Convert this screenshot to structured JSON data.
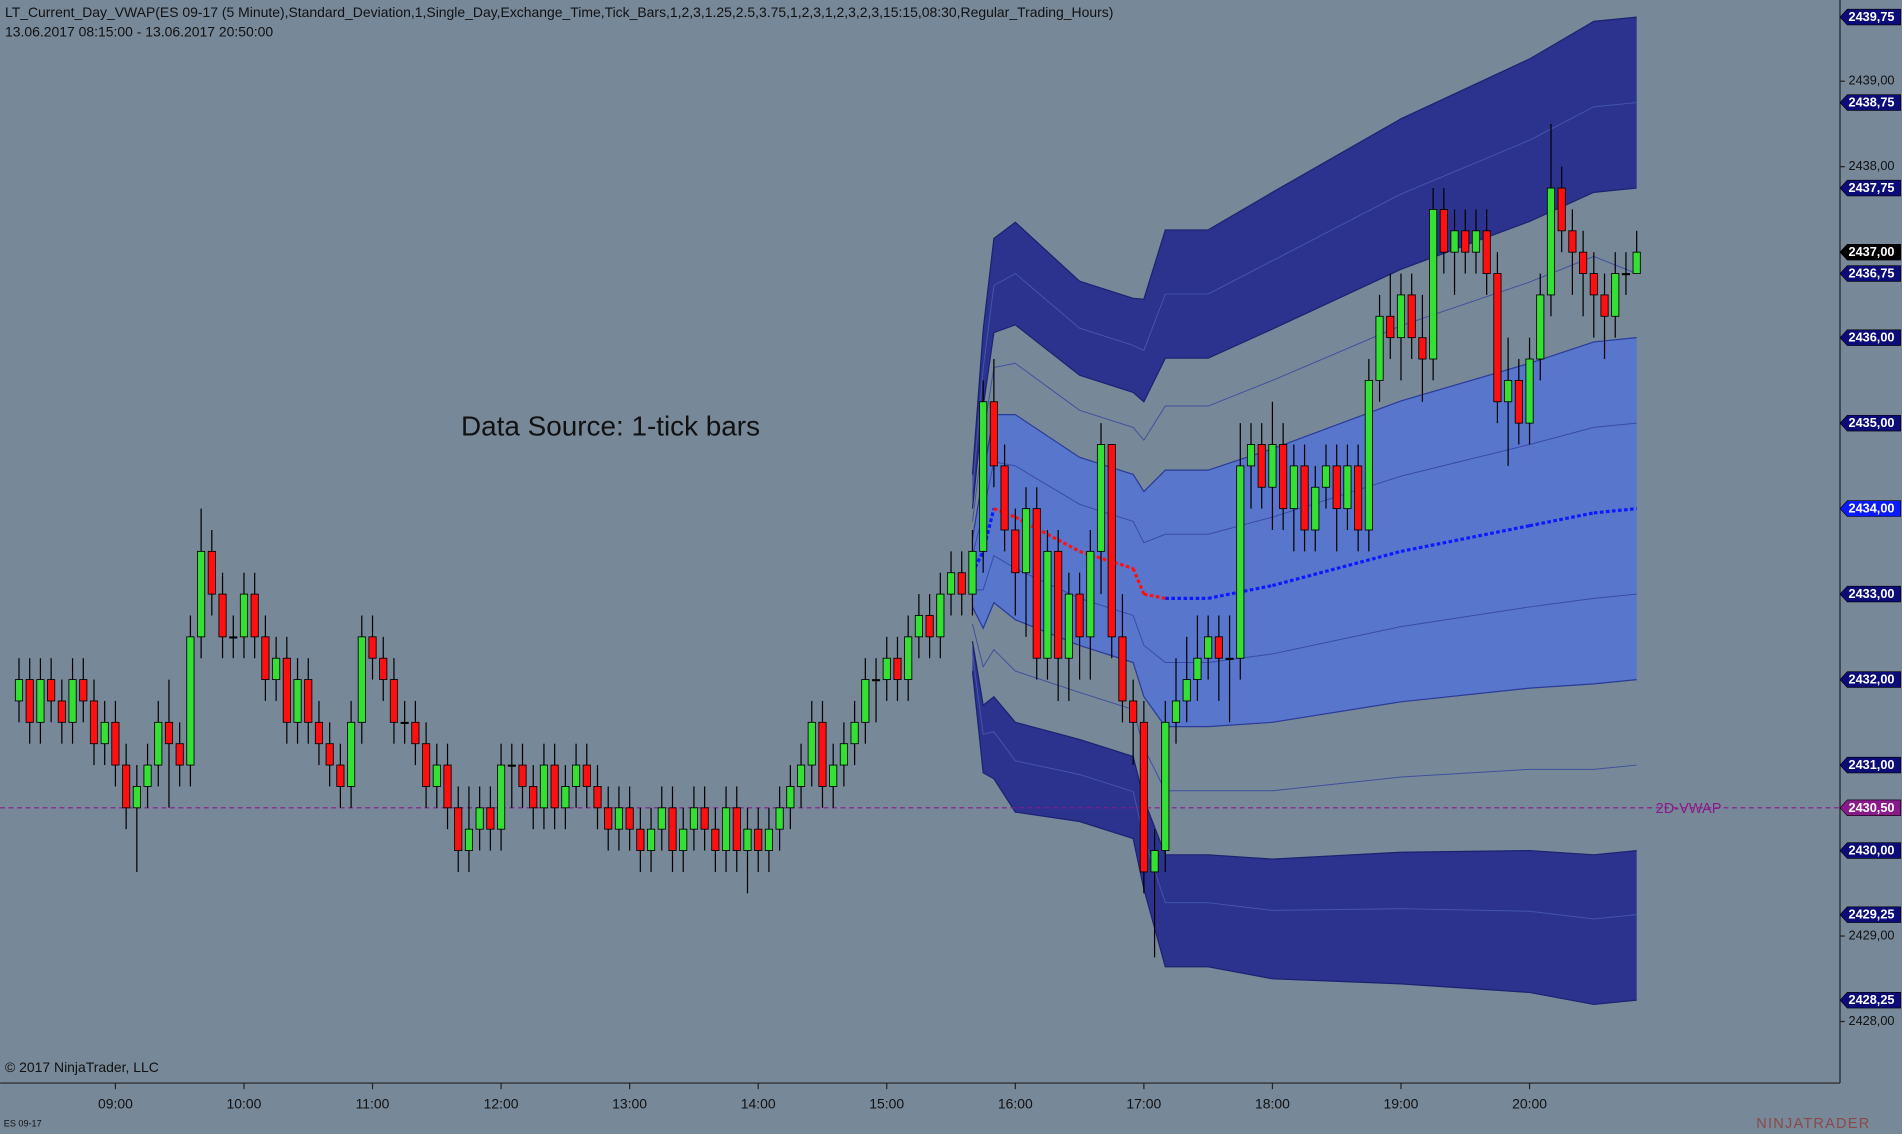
{
  "chart_data": {
    "type": "candlestick",
    "title": "LT_Current_Day_VWAP(ES 09-17 (5 Minute),Standard_Deviation,1,Single_Day,Exchange_Time,Tick_Bars,1,2,3,1.25,2.5,3.75,1,2,3,1,2,3,2,3,15:15,08:30,Regular_Trading_Hours)",
    "subtitle": "13.06.2017 08:15:00 - 13.06.2017 20:50:00",
    "annotation": "Data Source: 1-tick bars",
    "copyright": "© 2017 NinjaTrader, LLC",
    "instrument": "ES 09-17",
    "logo": "NINJATRADER",
    "background": "#778899",
    "up_color": "#33e033",
    "down_color": "#ff1010",
    "xlim": [
      486.2,
      1344.9
    ],
    "xticks": [
      {
        "value": 540,
        "label": "09:00"
      },
      {
        "value": 600,
        "label": "10:00"
      },
      {
        "value": 660,
        "label": "11:00"
      },
      {
        "value": 720,
        "label": "12:00"
      },
      {
        "value": 780,
        "label": "13:00"
      },
      {
        "value": 840,
        "label": "14:00"
      },
      {
        "value": 900,
        "label": "15:00"
      },
      {
        "value": 960,
        "label": "16:00"
      },
      {
        "value": 1020,
        "label": "17:00"
      },
      {
        "value": 1080,
        "label": "18:00"
      },
      {
        "value": 1140,
        "label": "19:00"
      },
      {
        "value": 1200,
        "label": "20:00"
      }
    ],
    "ylim": [
      2427.28,
      2439.95
    ],
    "yticks": [
      {
        "value": 2428,
        "label": "2428,00"
      },
      {
        "value": 2429,
        "label": "2429,00"
      },
      {
        "value": 2430,
        "label": "2430,00"
      },
      {
        "value": 2431,
        "label": "2431,00"
      },
      {
        "value": 2432,
        "label": "2432,00"
      },
      {
        "value": 2433,
        "label": "2433,00"
      },
      {
        "value": 2434,
        "label": "2434,00"
      },
      {
        "value": 2435,
        "label": "2435,00"
      },
      {
        "value": 2436,
        "label": "2436,00"
      },
      {
        "value": 2437,
        "label": "2437,00"
      },
      {
        "value": 2438,
        "label": "2438,00"
      },
      {
        "value": 2439,
        "label": "2439,00"
      }
    ],
    "x": [
      495,
      500,
      505,
      510,
      515,
      520,
      525,
      530,
      535,
      540,
      545,
      550,
      555,
      560,
      565,
      570,
      575,
      580,
      585,
      590,
      595,
      600,
      605,
      610,
      615,
      620,
      625,
      630,
      635,
      640,
      645,
      650,
      655,
      660,
      665,
      670,
      675,
      680,
      685,
      690,
      695,
      700,
      705,
      710,
      715,
      720,
      725,
      730,
      735,
      740,
      745,
      750,
      755,
      760,
      765,
      770,
      775,
      780,
      785,
      790,
      795,
      800,
      805,
      810,
      815,
      820,
      825,
      830,
      835,
      840,
      845,
      850,
      855,
      860,
      865,
      870,
      875,
      880,
      885,
      890,
      895,
      900,
      905,
      910,
      915,
      920,
      925,
      930,
      935,
      940,
      945,
      950,
      955,
      960,
      965,
      970,
      975,
      980,
      985,
      990,
      995,
      1000,
      1005,
      1010,
      1015,
      1020,
      1025,
      1030,
      1035,
      1040,
      1045,
      1050,
      1055,
      1060,
      1065,
      1070,
      1075,
      1080,
      1085,
      1090,
      1095,
      1100,
      1105,
      1110,
      1115,
      1120,
      1125,
      1130,
      1135,
      1140,
      1145,
      1150,
      1155,
      1160,
      1165,
      1170,
      1175,
      1180,
      1185,
      1190,
      1195,
      1200,
      1205,
      1210,
      1215,
      1220,
      1225,
      1230,
      1235,
      1240,
      1245,
      1250
    ],
    "open": [
      2431.75,
      2432,
      2431.5,
      2432,
      2431.75,
      2431.5,
      2432,
      2431.75,
      2431.25,
      2431.5,
      2431,
      2430.5,
      2430.75,
      2431,
      2431.5,
      2431.25,
      2431,
      2432.5,
      2433.5,
      2433,
      2432.5,
      2432.5,
      2433,
      2432.5,
      2432,
      2432.25,
      2431.5,
      2432,
      2431.5,
      2431.25,
      2431,
      2430.75,
      2431.5,
      2432.5,
      2432.25,
      2432,
      2431.5,
      2431.5,
      2431.25,
      2430.75,
      2431,
      2430.5,
      2430,
      2430.25,
      2430.5,
      2430.25,
      2431,
      2431,
      2430.75,
      2430.5,
      2431,
      2430.5,
      2430.75,
      2431,
      2430.75,
      2430.5,
      2430.25,
      2430.5,
      2430.25,
      2430,
      2430.25,
      2430.5,
      2430,
      2430.25,
      2430.5,
      2430.25,
      2430,
      2430.5,
      2430,
      2430.25,
      2430,
      2430.25,
      2430.5,
      2430.75,
      2431,
      2431.5,
      2430.75,
      2431,
      2431.25,
      2431.5,
      2432,
      2432,
      2432.25,
      2432,
      2432.5,
      2432.75,
      2432.5,
      2433,
      2433.25,
      2433,
      2433.5,
      2435.25,
      2434.5,
      2433.75,
      2433.25,
      2434,
      2432.25,
      2433.5,
      2432.25,
      2433,
      2432.5,
      2433.5,
      2434.75,
      2432.5,
      2431.75,
      2431.5,
      2429.75,
      2430,
      2431.5,
      2431.75,
      2432,
      2432.25,
      2432.5,
      2432.25,
      2432.25,
      2434.5,
      2434.75,
      2434.25,
      2434.75,
      2434,
      2434.5,
      2433.75,
      2434.25,
      2434.5,
      2434,
      2434.5,
      2433.75,
      2435.5,
      2436.25,
      2436,
      2436.5,
      2436,
      2435.75,
      2437.5,
      2437,
      2437.25,
      2437,
      2437.25,
      2436.75,
      2435.25,
      2435.5,
      2435,
      2435.75,
      2436.5,
      2437.75,
      2437.25,
      2437,
      2436.75,
      2436.5,
      2436.25,
      2436.75,
      2436.75
    ],
    "high": [
      2432.25,
      2432.25,
      2432.25,
      2432.25,
      2432,
      2432.25,
      2432.25,
      2432,
      2431.75,
      2431.75,
      2431.25,
      2431,
      2431.25,
      2431.75,
      2432,
      2431.5,
      2432.75,
      2434,
      2433.75,
      2433.25,
      2432.75,
      2433.25,
      2433.25,
      2432.75,
      2432.5,
      2432.5,
      2432.25,
      2432.25,
      2431.75,
      2431.5,
      2431.25,
      2431.75,
      2432.75,
      2432.75,
      2432.5,
      2432.25,
      2431.75,
      2431.75,
      2431.5,
      2431.25,
      2431.25,
      2430.75,
      2430.75,
      2430.75,
      2430.75,
      2431.25,
      2431.25,
      2431.25,
      2431,
      2431.25,
      2431.25,
      2431,
      2431.25,
      2431.25,
      2431,
      2430.75,
      2430.75,
      2430.75,
      2430.5,
      2430.5,
      2430.75,
      2430.75,
      2430.5,
      2430.75,
      2430.75,
      2430.5,
      2430.75,
      2430.75,
      2430.5,
      2430.5,
      2430.5,
      2430.75,
      2431,
      2431.25,
      2431.75,
      2431.75,
      2431.25,
      2431.5,
      2431.75,
      2432.25,
      2432.25,
      2432.5,
      2432.5,
      2432.75,
      2433,
      2433,
      2433.25,
      2433.5,
      2433.5,
      2433.75,
      2435.5,
      2435.75,
      2434.75,
      2434,
      2434.25,
      2434.25,
      2433.75,
      2433.75,
      2433.25,
      2433.25,
      2433.75,
      2435,
      2434.75,
      2433,
      2432,
      2431.75,
      2430.25,
      2431.75,
      2432.25,
      2432.5,
      2432.75,
      2432.75,
      2432.75,
      2432.75,
      2435,
      2435,
      2435,
      2435.25,
      2435,
      2434.75,
      2434.75,
      2434.5,
      2434.75,
      2434.75,
      2434.75,
      2434.75,
      2435.75,
      2436.5,
      2436.75,
      2436.75,
      2436.75,
      2436.5,
      2437.75,
      2437.75,
      2437.5,
      2437.5,
      2437.5,
      2437.5,
      2437,
      2436,
      2435.75,
      2436,
      2436.75,
      2438.5,
      2438,
      2437.5,
      2437.25,
      2437,
      2436.75,
      2437,
      2437,
      2437.25
    ],
    "low": [
      2431.5,
      2431.25,
      2431.25,
      2431.5,
      2431.25,
      2431.25,
      2431.5,
      2431,
      2431,
      2430.75,
      2430.25,
      2429.75,
      2430.5,
      2430.75,
      2430.5,
      2430.75,
      2430.75,
      2432.25,
      2432.75,
      2432.25,
      2432.25,
      2432.25,
      2432.25,
      2431.75,
      2431.75,
      2431.25,
      2431.25,
      2431.25,
      2431,
      2430.75,
      2430.5,
      2430.5,
      2431.25,
      2432,
      2431.75,
      2431.25,
      2431.25,
      2431,
      2430.5,
      2430.5,
      2430.25,
      2429.75,
      2429.75,
      2430,
      2430,
      2430,
      2430.5,
      2430.5,
      2430.25,
      2430.25,
      2430.25,
      2430.25,
      2430.5,
      2430.5,
      2430.25,
      2430,
      2430,
      2430,
      2429.75,
      2429.75,
      2430,
      2429.75,
      2429.75,
      2430,
      2430,
      2429.75,
      2429.75,
      2429.75,
      2429.5,
      2429.75,
      2429.75,
      2430,
      2430.25,
      2430.5,
      2430.75,
      2430.5,
      2430.5,
      2430.75,
      2431,
      2431.25,
      2431.5,
      2431.75,
      2431.75,
      2431.75,
      2432.25,
      2432.25,
      2432.25,
      2432.75,
      2432.75,
      2432.75,
      2433.25,
      2434.25,
      2433.5,
      2432.75,
      2432.5,
      2432,
      2432,
      2431.75,
      2431.75,
      2432,
      2432,
      2433,
      2432.25,
      2431.5,
      2431,
      2429.5,
      2428.75,
      2429.75,
      2431.25,
      2431.5,
      2431.75,
      2432,
      2431.75,
      2431.5,
      2432,
      2434,
      2434,
      2433.75,
      2433.75,
      2433.5,
      2433.5,
      2433.5,
      2434,
      2433.5,
      2433.75,
      2433.5,
      2433.5,
      2435.25,
      2435.75,
      2435.5,
      2435.75,
      2435.25,
      2435.5,
      2436.75,
      2436.5,
      2436.75,
      2436.75,
      2436.5,
      2435,
      2434.5,
      2434.75,
      2434.75,
      2435.5,
      2436.25,
      2437,
      2436.5,
      2436.25,
      2436,
      2435.75,
      2436,
      2436.5,
      2436.75
    ],
    "close": [
      2432,
      2431.5,
      2432,
      2431.75,
      2431.5,
      2432,
      2431.75,
      2431.25,
      2431.5,
      2431,
      2430.5,
      2430.75,
      2431,
      2431.5,
      2431.25,
      2431,
      2432.5,
      2433.5,
      2433,
      2432.5,
      2432.5,
      2433,
      2432.5,
      2432,
      2432.25,
      2431.5,
      2432,
      2431.5,
      2431.25,
      2431,
      2430.75,
      2431.5,
      2432.5,
      2432.25,
      2432,
      2431.5,
      2431.5,
      2431.25,
      2430.75,
      2431,
      2430.5,
      2430,
      2430.25,
      2430.5,
      2430.25,
      2431,
      2431,
      2430.75,
      2430.5,
      2431,
      2430.5,
      2430.75,
      2431,
      2430.75,
      2430.5,
      2430.25,
      2430.5,
      2430.25,
      2430,
      2430.25,
      2430.5,
      2430,
      2430.25,
      2430.5,
      2430.25,
      2430,
      2430.5,
      2430,
      2430.25,
      2430,
      2430.25,
      2430.5,
      2430.75,
      2431,
      2431.5,
      2430.75,
      2431,
      2431.25,
      2431.5,
      2432,
      2432,
      2432.25,
      2432,
      2432.5,
      2432.75,
      2432.5,
      2433,
      2433.25,
      2433,
      2433.5,
      2435.25,
      2434.5,
      2433.75,
      2433.25,
      2434,
      2432.25,
      2433.5,
      2432.25,
      2433,
      2432.5,
      2433.5,
      2434.75,
      2432.5,
      2431.75,
      2431.5,
      2429.75,
      2430,
      2431.5,
      2431.75,
      2432,
      2432.25,
      2432.5,
      2432.25,
      2432.25,
      2434.5,
      2434.75,
      2434.25,
      2434.75,
      2434,
      2434.5,
      2433.75,
      2434.25,
      2434.5,
      2434,
      2434.5,
      2433.75,
      2435.5,
      2436.25,
      2436,
      2436.5,
      2436,
      2435.75,
      2437.5,
      2437,
      2437.25,
      2437,
      2437.25,
      2436.75,
      2435.25,
      2435.5,
      2435,
      2435.75,
      2436.5,
      2437.75,
      2437.25,
      2437,
      2436.75,
      2436.5,
      2436.25,
      2436.75,
      2436.75,
      2437
    ],
    "bands": {
      "x": [
        940,
        945,
        950,
        960,
        990,
        1015,
        1020,
        1030,
        1050,
        1080,
        1140,
        1200,
        1230,
        1250
      ],
      "lines": [
        {
          "values": [
            2434.4,
            2436.09,
            2437.16,
            2437.35,
            2436.66,
            2436.46,
            2436.45,
            2437.26,
            2437.26,
            2437.7,
            2438.56,
            2439.26,
            2439.7,
            2439.75
          ],
          "color": "#1c2270",
          "width": 1
        },
        {
          "values": [
            2434.2,
            2435.64,
            2436.61,
            2436.75,
            2436.11,
            2435.91,
            2435.85,
            2436.51,
            2436.51,
            2436.9,
            2437.68,
            2438.31,
            2438.7,
            2438.75
          ],
          "color": "#4656a8",
          "width": 0.8
        },
        {
          "values": [
            2434.0,
            2435.19,
            2436.06,
            2436.15,
            2435.56,
            2435.36,
            2435.25,
            2435.76,
            2435.76,
            2436.1,
            2436.8,
            2437.36,
            2437.7,
            2437.75
          ],
          "color": "#1c2270",
          "width": 1
        },
        {
          "values": [
            2433.85,
            2434.85,
            2435.65,
            2435.7,
            2435.15,
            2434.95,
            2434.8,
            2435.2,
            2435.2,
            2435.5,
            2436.14,
            2436.65,
            2436.95,
            2436.75
          ],
          "color": "#3f4f9c",
          "width": 0.8
        },
        {
          "values": [
            2433.65,
            2434.4,
            2435.1,
            2435.1,
            2434.6,
            2434.4,
            2434.2,
            2434.45,
            2434.45,
            2434.7,
            2435.26,
            2435.7,
            2435.95,
            2436.0
          ],
          "color": "#2a3a98",
          "width": 1
        },
        {
          "values": [
            2433.45,
            2433.95,
            2434.55,
            2434.5,
            2434.05,
            2433.85,
            2433.6,
            2433.7,
            2433.7,
            2433.9,
            2434.38,
            2434.75,
            2434.95,
            2435.0
          ],
          "color": "#3a4aa8",
          "width": 0.8
        },
        {
          "values": [
            2433.05,
            2433.05,
            2433.45,
            2433.3,
            2432.95,
            2432.75,
            2432.4,
            2432.2,
            2432.2,
            2432.3,
            2432.62,
            2432.85,
            2432.95,
            2433.0
          ],
          "color": "#3a4aa8",
          "width": 0.8
        },
        {
          "values": [
            2432.85,
            2432.6,
            2432.9,
            2432.7,
            2432.4,
            2432.2,
            2431.8,
            2431.45,
            2431.45,
            2431.5,
            2431.74,
            2431.9,
            2431.95,
            2432.0
          ],
          "color": "#2a3a98",
          "width": 1
        },
        {
          "values": [
            2432.65,
            2432.15,
            2432.35,
            2432.1,
            2431.85,
            2431.65,
            2431.2,
            2430.7,
            2430.7,
            2430.7,
            2430.86,
            2430.95,
            2430.95,
            2431.0
          ],
          "color": "#3f4f9c",
          "width": 0.8
        },
        {
          "values": [
            2432.45,
            2431.7,
            2431.8,
            2431.5,
            2431.3,
            2431.1,
            2430.6,
            2429.95,
            2429.95,
            2429.9,
            2429.98,
            2430.0,
            2429.95,
            2430.0
          ],
          "color": "#1c2270",
          "width": 1
        },
        {
          "values": [
            2432.3,
            2431.36,
            2431.39,
            2431.05,
            2430.89,
            2430.69,
            2430.15,
            2429.39,
            2429.39,
            2429.3,
            2429.32,
            2429.29,
            2429.2,
            2429.25
          ],
          "color": "#4656a8",
          "width": 0.8
        },
        {
          "values": [
            2432.1,
            2430.91,
            2430.84,
            2430.45,
            2430.34,
            2430.14,
            2429.55,
            2428.64,
            2428.64,
            2428.5,
            2428.44,
            2428.34,
            2428.2,
            2428.25
          ],
          "color": "#1c2270",
          "width": 1
        }
      ],
      "fills": [
        {
          "between": [
            0,
            2
          ],
          "color": "#2b338f"
        },
        {
          "between": [
            4,
            7
          ],
          "color": "#5876cc"
        },
        {
          "between": [
            9,
            11
          ],
          "color": "#2b338f"
        }
      ]
    },
    "vwap": {
      "values": [
        2433.25,
        2433.5,
        2434.0,
        2433.9,
        2433.5,
        2433.3,
        2433.0,
        2432.95,
        2432.95,
        2433.1,
        2433.5,
        2433.8,
        2433.95,
        2434.0
      ],
      "up_color": "#0a1aff",
      "down_color": "#ff1010"
    },
    "reference_line": {
      "name": "2D-VWAP",
      "value": 2430.5,
      "color": "#8a1a8a"
    },
    "price_markers": [
      {
        "value": 2439.75,
        "label": "2439,75",
        "color": "#0c0c78"
      },
      {
        "value": 2438.75,
        "label": "2438,75",
        "color": "#0c0c78"
      },
      {
        "value": 2437.75,
        "label": "2437,75",
        "color": "#0c0c78"
      },
      {
        "value": 2436.75,
        "label": "2436,75",
        "color": "#0c0c78"
      },
      {
        "value": 2437.0,
        "label": "2437,00",
        "color": "#000000"
      },
      {
        "value": 2436.0,
        "label": "2436,00",
        "color": "#0c0c78"
      },
      {
        "value": 2435.0,
        "label": "2435,00",
        "color": "#0c0c78"
      },
      {
        "value": 2434.0,
        "label": "2434,00",
        "color": "#0a1aff"
      },
      {
        "value": 2433.0,
        "label": "2433,00",
        "color": "#0c0c78"
      },
      {
        "value": 2432.0,
        "label": "2432,00",
        "color": "#0c0c78"
      },
      {
        "value": 2431.0,
        "label": "2431,00",
        "color": "#0c0c78"
      },
      {
        "value": 2430.5,
        "label": "2430,50",
        "color": "#8a1a8a"
      },
      {
        "value": 2430.0,
        "label": "2430,00",
        "color": "#0c0c78"
      },
      {
        "value": 2429.25,
        "label": "2429,25",
        "color": "#0c0c78"
      },
      {
        "value": 2428.25,
        "label": "2428,25",
        "color": "#0c0c78"
      }
    ]
  }
}
